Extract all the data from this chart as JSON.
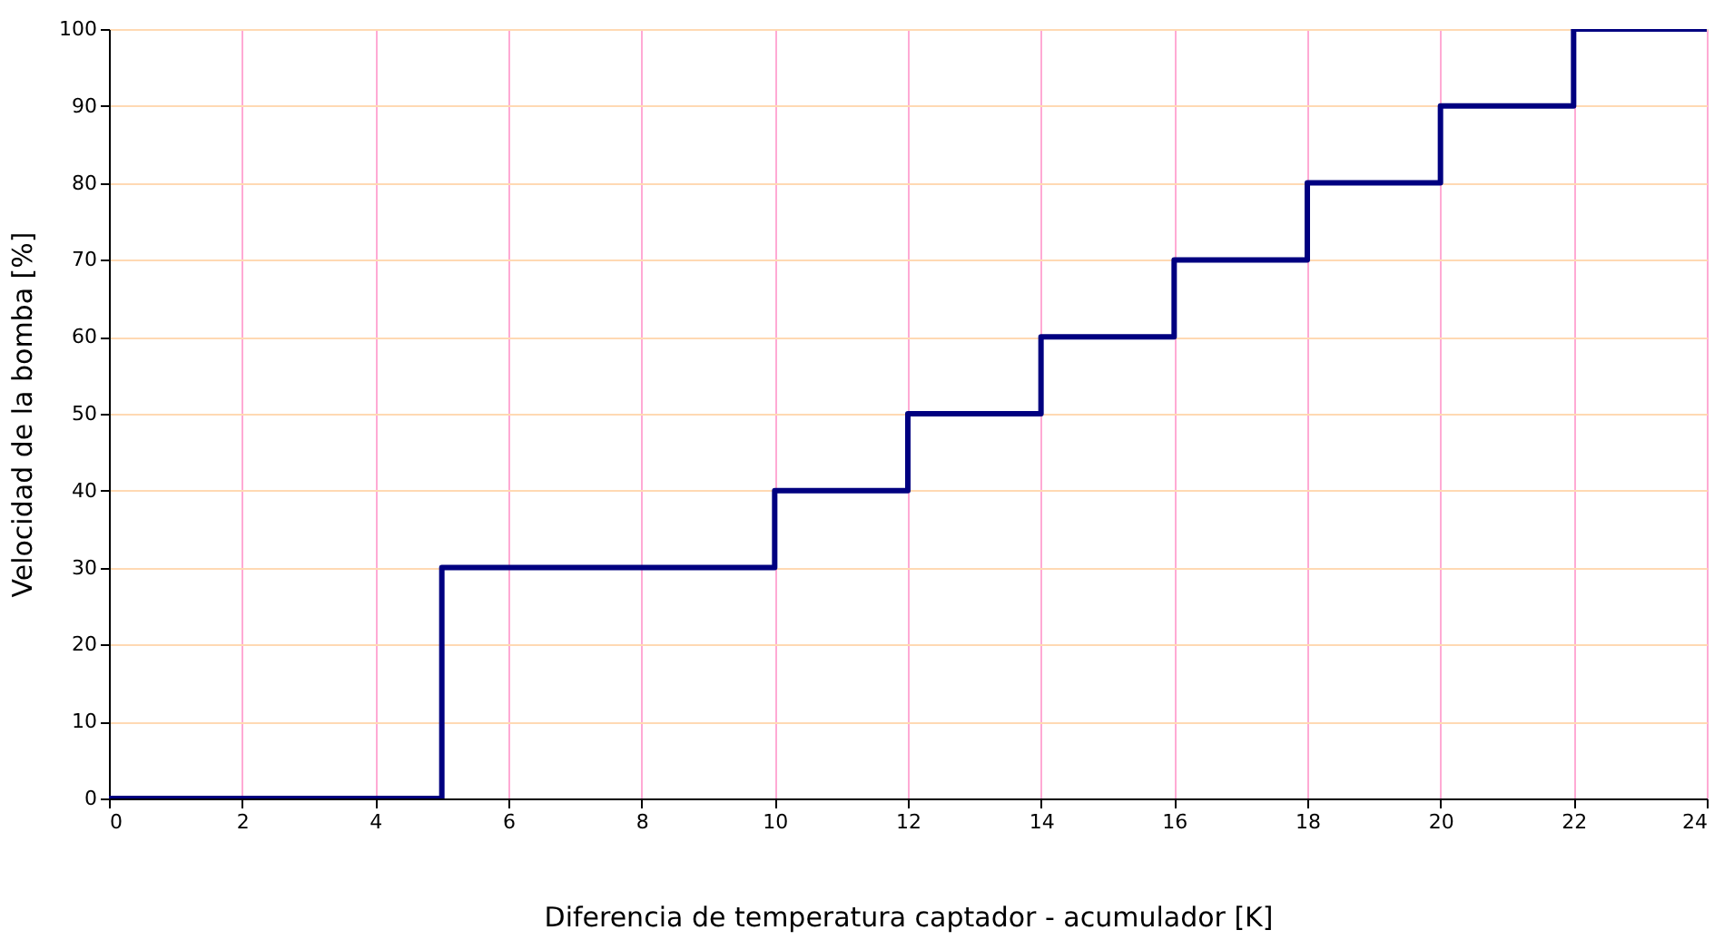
{
  "chart_data": {
    "type": "step",
    "xlabel": "Diferencia de temperatura captador - acumulador [K]",
    "ylabel": "Velocidad de la bomba [%]",
    "x": [
      0,
      5,
      10,
      12,
      14,
      16,
      18,
      20,
      22,
      24
    ],
    "series": [
      {
        "color": "#000080",
        "values": [
          0,
          30,
          40,
          50,
          60,
          70,
          80,
          90,
          100,
          100
        ]
      }
    ],
    "xlim": [
      0,
      24
    ],
    "xticks": [
      0,
      2,
      4,
      6,
      8,
      10,
      12,
      14,
      16,
      18,
      20,
      22,
      24
    ],
    "ylim": [
      0,
      100
    ],
    "yticks": [
      0,
      10,
      20,
      30,
      40,
      50,
      60,
      70,
      80,
      90,
      100
    ],
    "grid": true,
    "marker": "none",
    "line_style": "solid"
  }
}
